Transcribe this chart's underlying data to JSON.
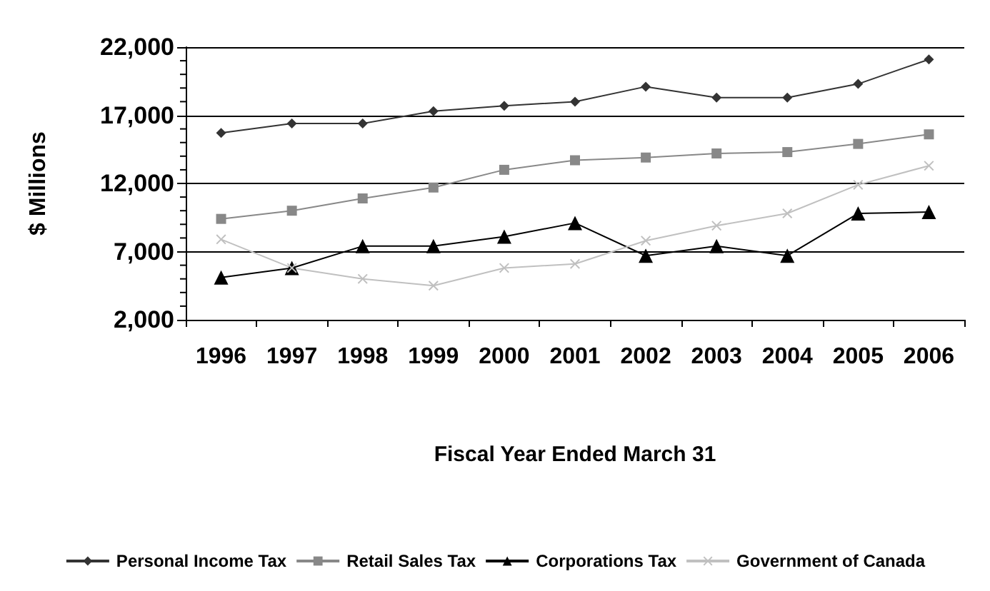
{
  "chart_data": {
    "type": "line",
    "xlabel": "Fiscal Year Ended March 31",
    "ylabel": "$ Millions",
    "categories": [
      "1996",
      "1997",
      "1998",
      "1999",
      "2000",
      "2001",
      "2002",
      "2003",
      "2004",
      "2005",
      "2006"
    ],
    "series": [
      {
        "name": "Personal Income Tax",
        "color": "#333333",
        "marker": "diamond",
        "values": [
          15700,
          16400,
          16400,
          17300,
          17700,
          18000,
          19100,
          18300,
          18300,
          19300,
          21100
        ]
      },
      {
        "name": "Retail Sales Tax",
        "color": "#888888",
        "marker": "square",
        "values": [
          9400,
          10000,
          10900,
          11700,
          13000,
          13700,
          13900,
          14200,
          14300,
          14900,
          15600
        ]
      },
      {
        "name": "Corporations Tax",
        "color": "#000000",
        "marker": "triangle",
        "values": [
          5100,
          5800,
          7400,
          7400,
          8100,
          9100,
          6700,
          7400,
          6700,
          9800,
          9900
        ]
      },
      {
        "name": "Government of Canada",
        "color": "#c0c0c0",
        "marker": "cross",
        "values": [
          7900,
          5800,
          5000,
          4500,
          5800,
          6100,
          7800,
          8900,
          9800,
          11900,
          13300
        ]
      }
    ],
    "ylim": [
      2000,
      22000
    ],
    "yticks": [
      {
        "value": 2000,
        "label": "2,000"
      },
      {
        "value": 7000,
        "label": "7,000"
      },
      {
        "value": 12000,
        "label": "12,000"
      },
      {
        "value": 17000,
        "label": "17,000"
      },
      {
        "value": 22000,
        "label": "22,000"
      }
    ],
    "grid": "y",
    "legend": "bottom"
  }
}
